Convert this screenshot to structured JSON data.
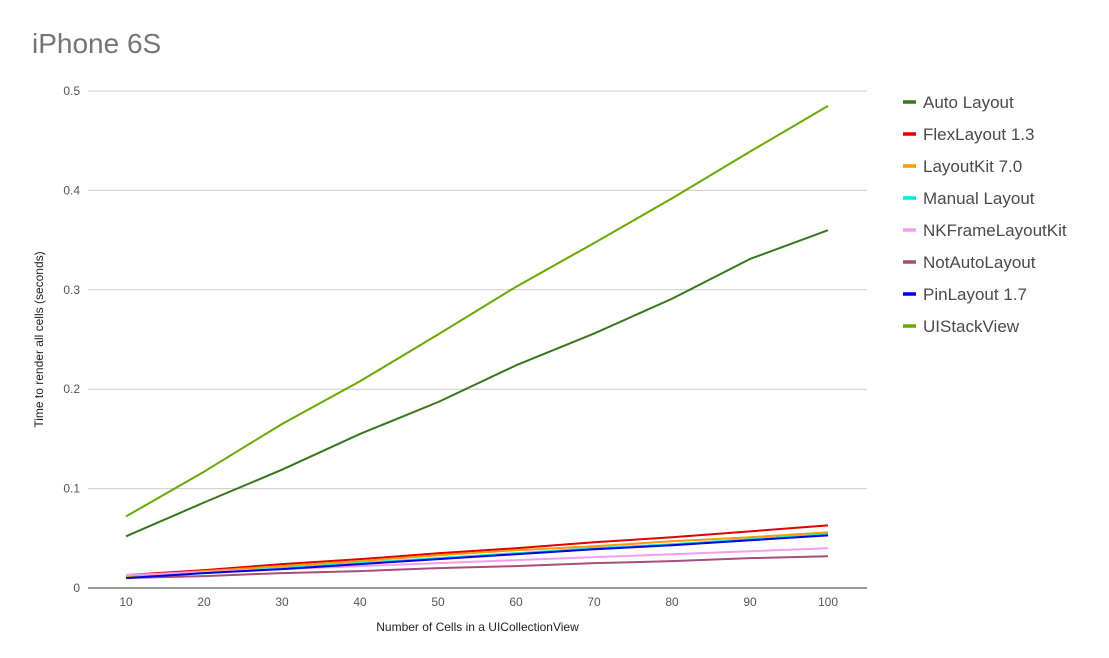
{
  "chart_data": {
    "type": "line",
    "title": "iPhone 6S",
    "xlabel": "Number of Cells in a UICollectionView",
    "ylabel": "Time to  render  all cells (seconds)",
    "x": [
      10,
      20,
      30,
      40,
      50,
      60,
      70,
      80,
      90,
      100
    ],
    "xlim": [
      10,
      100
    ],
    "ylim": [
      0,
      0.5
    ],
    "yticks": [
      0,
      0.1,
      0.2,
      0.3,
      0.4,
      0.5
    ],
    "ytick_labels": [
      "0",
      "0.1",
      "0.2",
      "0.3",
      "0.4",
      "0.5"
    ],
    "grid": true,
    "legend_position": "right",
    "series": [
      {
        "name": "Auto Layout",
        "color": "#38761d",
        "values": [
          0.052,
          0.086,
          0.119,
          0.155,
          0.187,
          0.224,
          0.256,
          0.291,
          0.331,
          0.36
        ]
      },
      {
        "name": "FlexLayout 1.3",
        "color": "#e00000",
        "values": [
          0.013,
          0.018,
          0.024,
          0.029,
          0.035,
          0.04,
          0.046,
          0.051,
          0.057,
          0.063
        ]
      },
      {
        "name": "LayoutKit 7.0",
        "color": "#ff9900",
        "values": [
          0.012,
          0.017,
          0.022,
          0.027,
          0.033,
          0.038,
          0.042,
          0.047,
          0.051,
          0.056
        ]
      },
      {
        "name": "Manual Layout",
        "color": "#00e5e5",
        "values": [
          0.01,
          0.015,
          0.02,
          0.025,
          0.03,
          0.035,
          0.04,
          0.044,
          0.049,
          0.054
        ]
      },
      {
        "name": "NKFrameLayoutKit",
        "color": "#f49cf0",
        "values": [
          0.013,
          0.016,
          0.019,
          0.022,
          0.025,
          0.028,
          0.031,
          0.034,
          0.037,
          0.04
        ]
      },
      {
        "name": "NotAutoLayout",
        "color": "#a64d79",
        "values": [
          0.01,
          0.012,
          0.015,
          0.017,
          0.02,
          0.022,
          0.025,
          0.027,
          0.03,
          0.032
        ]
      },
      {
        "name": "PinLayout 1.7",
        "color": "#0000dd",
        "values": [
          0.01,
          0.015,
          0.019,
          0.024,
          0.029,
          0.034,
          0.039,
          0.043,
          0.048,
          0.053
        ]
      },
      {
        "name": "UIStackView",
        "color": "#6aa800",
        "values": [
          0.072,
          0.117,
          0.165,
          0.208,
          0.255,
          0.303,
          0.347,
          0.392,
          0.439,
          0.485
        ]
      }
    ]
  }
}
